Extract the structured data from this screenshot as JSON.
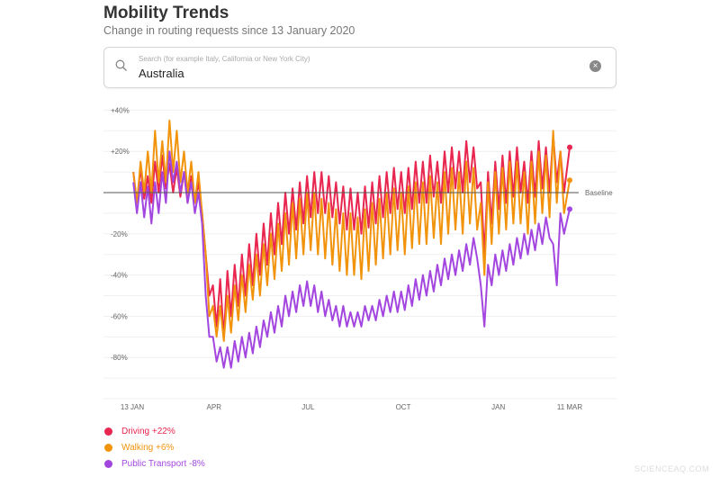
{
  "header": {
    "title": "Mobility Trends",
    "subtitle": "Change in routing requests since 13 January 2020"
  },
  "search": {
    "placeholder": "Search (for example Italy, California or New York City)",
    "value": "Australia",
    "icon": "search-icon",
    "clear_icon": "clear-icon"
  },
  "watermark": "SCIENCEAQ.COM",
  "chart_data": {
    "type": "line",
    "ylim": [
      -100,
      40
    ],
    "yticks": [
      {
        "v": 40,
        "label": "+40%"
      },
      {
        "v": 20,
        "label": "+20%"
      },
      {
        "v": -20,
        "label": "-20%"
      },
      {
        "v": -40,
        "label": "-40%"
      },
      {
        "v": -60,
        "label": "-60%"
      },
      {
        "v": -80,
        "label": "-80%"
      }
    ],
    "xlim": [
      "2020-01-13",
      "2021-03-11"
    ],
    "xticks": [
      {
        "d": "2020-01-13",
        "label": "13 JAN"
      },
      {
        "d": "2020-04-01",
        "label": "APR"
      },
      {
        "d": "2020-07-01",
        "label": "JUL"
      },
      {
        "d": "2020-10-01",
        "label": "OCT"
      },
      {
        "d": "2021-01-01",
        "label": "JAN"
      },
      {
        "d": "2021-03-11",
        "label": "11 MAR"
      }
    ],
    "baseline_label": "Baseline",
    "grid": true,
    "legend_position": "bottom-left",
    "weekly_start": "2020-01-13",
    "series": [
      {
        "name": "Driving",
        "legend": "Driving +22%",
        "color": "#e8264f",
        "final": 22,
        "weekly_high": [
          10,
          12,
          8,
          15,
          18,
          14,
          12,
          10,
          8,
          5,
          -30,
          -45,
          -42,
          -38,
          -35,
          -30,
          -25,
          -20,
          -15,
          -10,
          -5,
          0,
          2,
          5,
          8,
          10,
          10,
          8,
          5,
          3,
          2,
          0,
          3,
          5,
          8,
          10,
          12,
          10,
          12,
          15,
          15,
          18,
          15,
          20,
          22,
          20,
          25,
          22,
          5,
          10,
          15,
          18,
          20,
          22,
          15,
          20,
          25,
          22,
          28,
          20
        ],
        "weekly_low": [
          -5,
          -3,
          -5,
          0,
          2,
          0,
          -2,
          -5,
          -5,
          -10,
          -50,
          -65,
          -70,
          -60,
          -55,
          -50,
          -45,
          -40,
          -35,
          -30,
          -25,
          -20,
          -18,
          -15,
          -12,
          -10,
          -10,
          -12,
          -15,
          -18,
          -18,
          -20,
          -17,
          -15,
          -12,
          -10,
          -8,
          -10,
          -8,
          -5,
          -5,
          -2,
          -5,
          0,
          2,
          0,
          5,
          2,
          -30,
          -15,
          -8,
          -5,
          -2,
          0,
          -5,
          -2,
          2,
          0,
          5,
          0
        ]
      },
      {
        "name": "Walking",
        "legend": "Walking +6%",
        "color": "#f2930c",
        "final": 6,
        "weekly_high": [
          10,
          15,
          20,
          30,
          25,
          35,
          30,
          20,
          15,
          10,
          -30,
          -55,
          -55,
          -50,
          -45,
          -40,
          -35,
          -30,
          -25,
          -20,
          -15,
          -10,
          -5,
          -3,
          0,
          0,
          -3,
          -5,
          -8,
          -10,
          -10,
          -12,
          -8,
          -5,
          -3,
          0,
          2,
          0,
          3,
          5,
          5,
          8,
          5,
          10,
          12,
          10,
          15,
          12,
          -5,
          5,
          10,
          12,
          15,
          15,
          10,
          15,
          20,
          18,
          30,
          20
        ],
        "weekly_low": [
          -5,
          0,
          0,
          5,
          5,
          10,
          5,
          0,
          -5,
          -10,
          -60,
          -70,
          -72,
          -68,
          -62,
          -58,
          -52,
          -50,
          -45,
          -42,
          -38,
          -35,
          -32,
          -30,
          -28,
          -30,
          -32,
          -35,
          -38,
          -40,
          -40,
          -42,
          -38,
          -35,
          -32,
          -30,
          -28,
          -30,
          -27,
          -25,
          -25,
          -22,
          -25,
          -20,
          -18,
          -20,
          -15,
          -18,
          -40,
          -25,
          -20,
          -18,
          -15,
          -15,
          -20,
          -15,
          -10,
          -12,
          -5,
          -10
        ]
      },
      {
        "name": "Public Transport",
        "legend": "Public Transport -8%",
        "color": "#a346e0",
        "final": -8,
        "weekly_high": [
          5,
          5,
          3,
          5,
          10,
          20,
          15,
          10,
          5,
          0,
          -50,
          -70,
          -75,
          -75,
          -72,
          -70,
          -68,
          -65,
          -62,
          -58,
          -55,
          -50,
          -48,
          -45,
          -43,
          -45,
          -48,
          -52,
          -55,
          -55,
          -58,
          -58,
          -55,
          -55,
          -52,
          -50,
          -48,
          -48,
          -45,
          -42,
          -40,
          -38,
          -35,
          -32,
          -30,
          -28,
          -25,
          -22,
          -45,
          -35,
          -30,
          -28,
          -25,
          -22,
          -20,
          -18,
          -15,
          -12,
          -25,
          -10
        ],
        "weekly_low": [
          -10,
          -12,
          -15,
          -10,
          -5,
          5,
          0,
          -5,
          -10,
          -15,
          -70,
          -82,
          -85,
          -85,
          -82,
          -80,
          -78,
          -75,
          -70,
          -68,
          -65,
          -60,
          -58,
          -55,
          -55,
          -58,
          -60,
          -62,
          -65,
          -65,
          -65,
          -65,
          -62,
          -62,
          -60,
          -58,
          -58,
          -57,
          -55,
          -52,
          -50,
          -48,
          -45,
          -42,
          -40,
          -38,
          -35,
          -32,
          -65,
          -45,
          -40,
          -38,
          -35,
          -32,
          -30,
          -28,
          -25,
          -22,
          -45,
          -20
        ]
      }
    ]
  }
}
